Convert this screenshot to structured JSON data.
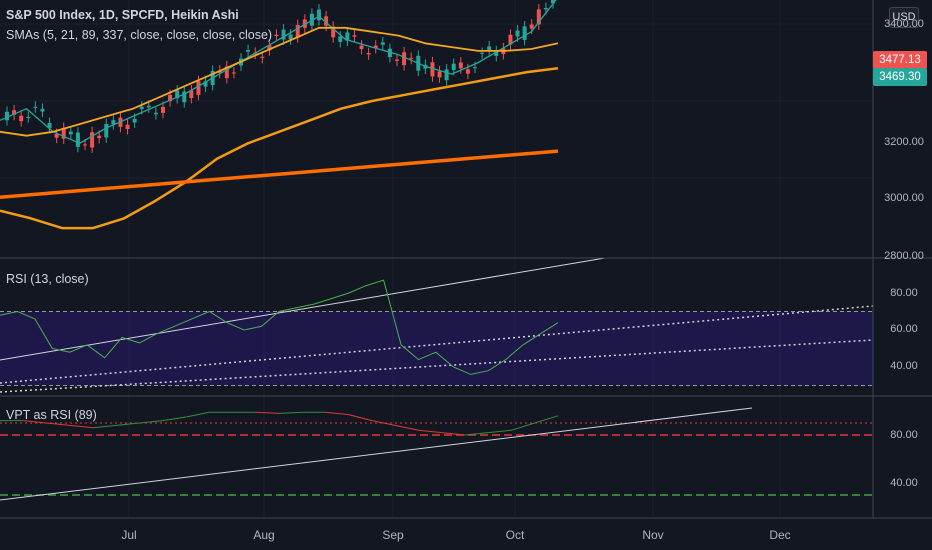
{
  "header": {
    "symbol_line": "S&P 500 Index, 1D, SPCFD, Heikin Ashi",
    "sma_line": "SMAs (5, 21, 89, 337, close, close, close, close)",
    "currency_button": "USD"
  },
  "price_tags": {
    "last": "3477.13",
    "sma5": "3469.30"
  },
  "colors": {
    "background": "#131722",
    "up": "#26a69a",
    "down": "#ef5350",
    "sma5": "#26a69a",
    "sma21": "#f5a623",
    "sma89": "#f39c12",
    "sma337": "#ff6d00",
    "rsi_line": "#4caf50",
    "rsi_band": "#311b92",
    "vpt_up": "#388e3c",
    "vpt_down": "#e53935"
  },
  "chart_data": [
    {
      "type": "candlestick",
      "title": "S&P 500 Index, 1D, SPCFD, Heikin Ashi",
      "x_ticks": [
        "Jul",
        "Aug",
        "Sep",
        "Oct",
        "Nov",
        "Dec"
      ],
      "y_ticks": [
        "3400.00",
        "3200.00",
        "3000.00",
        "2800.00"
      ],
      "ylim": [
        2800,
        3400
      ],
      "series": [
        {
          "name": "SMA 5",
          "values": [
            3150,
            3180,
            3120,
            3090,
            3130,
            3160,
            3190,
            3220,
            3260,
            3300,
            3340,
            3380,
            3420,
            3360,
            3340,
            3320,
            3290,
            3270,
            3300,
            3340,
            3380,
            3469.3
          ]
        },
        {
          "name": "SMA 21",
          "values": [
            3120,
            3110,
            3120,
            3140,
            3160,
            3180,
            3210,
            3240,
            3270,
            3300,
            3330,
            3360,
            3390,
            3390,
            3380,
            3370,
            3350,
            3340,
            3330,
            3330,
            3335,
            3350
          ]
        },
        {
          "name": "SMA 89",
          "values": [
            2915,
            2895,
            2870,
            2870,
            2895,
            2940,
            2990,
            3050,
            3090,
            3120,
            3150,
            3180,
            3200,
            3215,
            3230,
            3245,
            3260,
            3275,
            3285
          ]
        },
        {
          "name": "SMA 337",
          "values": [
            2950,
            2980,
            3010,
            3040,
            3070
          ]
        }
      ],
      "last_price": 3477.13
    },
    {
      "type": "line",
      "title": "RSI (13, close)",
      "y_ticks": [
        "80.00",
        "60.00",
        "40.00"
      ],
      "ylim": [
        20,
        90
      ],
      "bands": [
        70,
        30
      ],
      "values": [
        68,
        70,
        66,
        50,
        48,
        52,
        45,
        56,
        53,
        58,
        62,
        66,
        70,
        64,
        60,
        62,
        70,
        72,
        74,
        77,
        80,
        84,
        87,
        52,
        44,
        48,
        40,
        36,
        38,
        44,
        52,
        58,
        64
      ]
    },
    {
      "type": "line",
      "title": "VPT as RSI (89)",
      "y_ticks": [
        "80.00",
        "40.00"
      ],
      "ylim": [
        20,
        110
      ],
      "bands": [
        90,
        80,
        30
      ],
      "values": [
        92,
        92,
        90,
        88,
        86,
        88,
        90,
        92,
        95,
        99,
        99,
        99,
        98,
        99,
        99,
        97,
        92,
        88,
        84,
        82,
        80,
        82,
        84,
        90,
        96
      ]
    }
  ]
}
